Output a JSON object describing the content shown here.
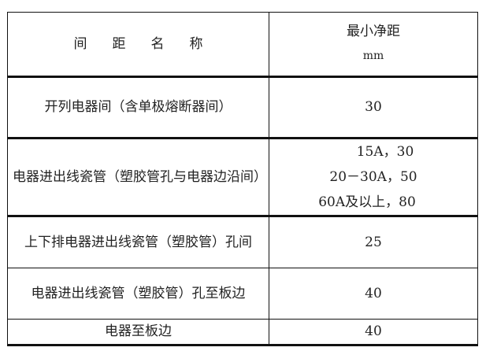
{
  "table": {
    "header": {
      "name_chars": [
        "间",
        "距",
        "名",
        "称"
      ],
      "value_title": "最小净距",
      "value_unit": "mm"
    },
    "rows": [
      {
        "name": "开列电器间（含单极熔断器间）",
        "values": [
          "30"
        ]
      },
      {
        "name": "电器进出线瓷管（塑胶管孔与电器边沿间）",
        "values": [
          "15A，30",
          "20－30A，50",
          "60A及以上，80"
        ]
      },
      {
        "name": "上下排电器进出线瓷管（塑胶管）孔间",
        "values": [
          "25"
        ]
      },
      {
        "name": "电器进出线瓷管（塑胶管）孔至板边",
        "values": [
          "40"
        ]
      },
      {
        "name": "电器至板边",
        "values": [
          "40"
        ]
      }
    ]
  }
}
